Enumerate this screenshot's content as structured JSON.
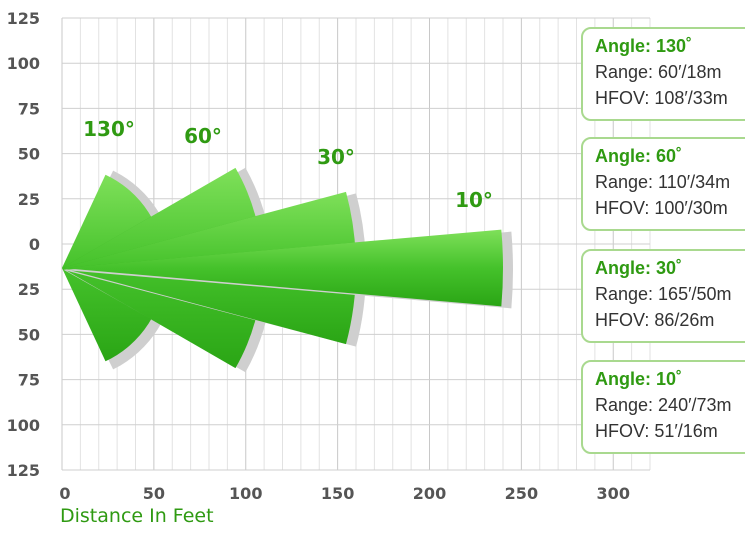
{
  "chart_data": {
    "type": "fan",
    "xlabel": "Distance In Feet",
    "ylabel": "",
    "xlim": [
      0,
      320
    ],
    "ylim": [
      -125,
      125
    ],
    "x_ticks": [
      "0",
      "50",
      "100",
      "150",
      "200",
      "250",
      "300"
    ],
    "y_ticks": [
      "125",
      "100",
      "75",
      "50",
      "25",
      "0",
      "25",
      "50",
      "75",
      "100",
      "125"
    ],
    "grid": true,
    "series": [
      {
        "angle_label": "130°",
        "range_ft": 60,
        "extent_ft": 56
      },
      {
        "angle_label": "60°",
        "range_ft": 110,
        "extent_ft": 109
      },
      {
        "angle_label": "30°",
        "range_ft": 165,
        "extent_ft": 160
      },
      {
        "angle_label": "10°",
        "range_ft": 240,
        "extent_ft": 240
      }
    ],
    "colors": {
      "fan_light": "#7fe05a",
      "fan_dark": "#25a010",
      "shadow": "#cfcfcf",
      "label_green": "#2f9a12",
      "box_border": "#a9d98f"
    }
  },
  "specs": [
    {
      "angle": "Angle: 130˚",
      "range": "Range: 60′/18m",
      "hfov": "HFOV: 108′/33m"
    },
    {
      "angle": "Angle: 60˚",
      "range": "Range: 110′/34m",
      "hfov": "HFOV: 100′/30m"
    },
    {
      "angle": "Angle: 30˚",
      "range": "Range: 165′/50m",
      "hfov": "HFOV: 86/26m"
    },
    {
      "angle": "Angle: 10˚",
      "range": "Range: 240′/73m",
      "hfov": "HFOV: 51′/16m"
    }
  ]
}
